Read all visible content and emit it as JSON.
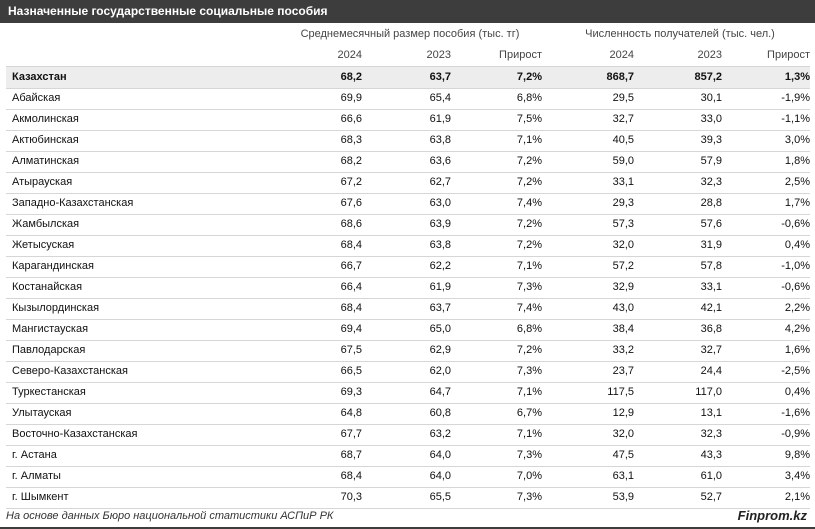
{
  "title": "Назначенные государственные социальные пособия",
  "table": {
    "group_headers": [
      "Среднемесячный размер пособия (тыс. тг)",
      "Численность получателей (тыс. чел.)"
    ],
    "columns": [
      "2024",
      "2023",
      "Прирост",
      "2024",
      "2023",
      "Прирост"
    ],
    "rows": [
      [
        "Казахстан",
        "68,2",
        "63,7",
        "7,2%",
        "868,7",
        "857,2",
        "1,3%"
      ],
      [
        "Абайская",
        "69,9",
        "65,4",
        "6,8%",
        "29,5",
        "30,1",
        "-1,9%"
      ],
      [
        "Акмолинская",
        "66,6",
        "61,9",
        "7,5%",
        "32,7",
        "33,0",
        "-1,1%"
      ],
      [
        "Актюбинская",
        "68,3",
        "63,8",
        "7,1%",
        "40,5",
        "39,3",
        "3,0%"
      ],
      [
        "Алматинская",
        "68,2",
        "63,6",
        "7,2%",
        "59,0",
        "57,9",
        "1,8%"
      ],
      [
        "Атырауская",
        "67,2",
        "62,7",
        "7,2%",
        "33,1",
        "32,3",
        "2,5%"
      ],
      [
        "Западно-Казахстанская",
        "67,6",
        "63,0",
        "7,4%",
        "29,3",
        "28,8",
        "1,7%"
      ],
      [
        "Жамбылская",
        "68,6",
        "63,9",
        "7,2%",
        "57,3",
        "57,6",
        "-0,6%"
      ],
      [
        "Жетысуская",
        "68,4",
        "63,8",
        "7,2%",
        "32,0",
        "31,9",
        "0,4%"
      ],
      [
        "Карагандинская",
        "66,7",
        "62,2",
        "7,1%",
        "57,2",
        "57,8",
        "-1,0%"
      ],
      [
        "Костанайская",
        "66,4",
        "61,9",
        "7,3%",
        "32,9",
        "33,1",
        "-0,6%"
      ],
      [
        "Кызылординская",
        "68,4",
        "63,7",
        "7,4%",
        "43,0",
        "42,1",
        "2,2%"
      ],
      [
        "Мангистауская",
        "69,4",
        "65,0",
        "6,8%",
        "38,4",
        "36,8",
        "4,2%"
      ],
      [
        "Павлодарская",
        "67,5",
        "62,9",
        "7,2%",
        "33,2",
        "32,7",
        "1,6%"
      ],
      [
        "Северо-Казахстанская",
        "66,5",
        "62,0",
        "7,3%",
        "23,7",
        "24,4",
        "-2,5%"
      ],
      [
        "Туркестанская",
        "69,3",
        "64,7",
        "7,1%",
        "117,5",
        "117,0",
        "0,4%"
      ],
      [
        "Улытауская",
        "64,8",
        "60,8",
        "6,7%",
        "12,9",
        "13,1",
        "-1,6%"
      ],
      [
        "Восточно-Казахстанская",
        "67,7",
        "63,2",
        "7,1%",
        "32,0",
        "32,3",
        "-0,9%"
      ],
      [
        "г. Астана",
        "68,7",
        "64,0",
        "7,3%",
        "47,5",
        "43,3",
        "9,8%"
      ],
      [
        "г. Алматы",
        "68,4",
        "64,0",
        "7,0%",
        "63,1",
        "61,0",
        "3,4%"
      ],
      [
        "г. Шымкент",
        "70,3",
        "65,5",
        "7,3%",
        "53,9",
        "52,7",
        "2,1%"
      ]
    ]
  },
  "footer": {
    "source": "На основе данных Бюро национальной статистики АСПиР РК",
    "brand": "Finprom.kz"
  }
}
